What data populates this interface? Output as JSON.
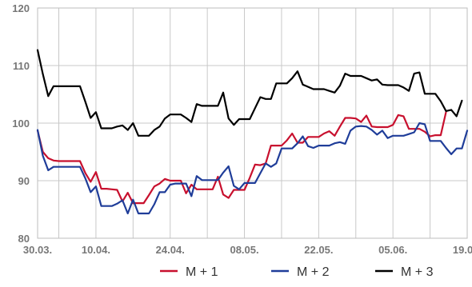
{
  "chart_data": {
    "type": "line",
    "ylim": [
      80,
      120
    ],
    "y_ticks": [
      80,
      90,
      100,
      110,
      120
    ],
    "x_tick_labels": [
      "30.03.",
      "10.04.",
      "24.04.",
      "08.05.",
      "22.05.",
      "05.06.",
      "19.06."
    ],
    "grid": true,
    "legend_position": "bottom",
    "series": [
      {
        "name": "M + 1",
        "color": "#c8102e",
        "points": [
          [
            0,
            98.7
          ],
          [
            1,
            95.0
          ],
          [
            2,
            93.9
          ],
          [
            3,
            93.5
          ],
          [
            4,
            93.4
          ],
          [
            5,
            93.4
          ],
          [
            6,
            93.4
          ],
          [
            7,
            93.4
          ],
          [
            8,
            93.4
          ],
          [
            9,
            91.3
          ],
          [
            10,
            89.8
          ],
          [
            11,
            91.5
          ],
          [
            12,
            88.6
          ],
          [
            13,
            88.6
          ],
          [
            14,
            88.5
          ],
          [
            15,
            88.4
          ],
          [
            16,
            86.4
          ],
          [
            17,
            87.9
          ],
          [
            18,
            86.1
          ],
          [
            19,
            86.1
          ],
          [
            20,
            86.1
          ],
          [
            21,
            87.5
          ],
          [
            22,
            89.0
          ],
          [
            23,
            89.5
          ],
          [
            24,
            90.3
          ],
          [
            25,
            90.0
          ],
          [
            26,
            90.0
          ],
          [
            27,
            90.0
          ],
          [
            28,
            87.8
          ],
          [
            29,
            89.3
          ],
          [
            30,
            88.5
          ],
          [
            31,
            88.5
          ],
          [
            32,
            88.5
          ],
          [
            33,
            88.5
          ],
          [
            34,
            90.7
          ],
          [
            35,
            87.6
          ],
          [
            36,
            87.0
          ],
          [
            37,
            88.4
          ],
          [
            38,
            88.4
          ],
          [
            39,
            88.4
          ],
          [
            40,
            90.5
          ],
          [
            41,
            92.8
          ],
          [
            42,
            92.7
          ],
          [
            43,
            93.0
          ],
          [
            44,
            96.1
          ],
          [
            45,
            96.1
          ],
          [
            46,
            96.1
          ],
          [
            47,
            97.0
          ],
          [
            48,
            98.2
          ],
          [
            49,
            96.6
          ],
          [
            50,
            96.6
          ],
          [
            51,
            97.6
          ],
          [
            52,
            97.6
          ],
          [
            53,
            97.6
          ],
          [
            54,
            98.2
          ],
          [
            55,
            98.6
          ],
          [
            56,
            97.8
          ],
          [
            57,
            99.4
          ],
          [
            58,
            100.9
          ],
          [
            59,
            100.9
          ],
          [
            60,
            100.8
          ],
          [
            61,
            100.2
          ],
          [
            62,
            101.3
          ],
          [
            63,
            99.4
          ],
          [
            64,
            99.3
          ],
          [
            65,
            99.3
          ],
          [
            66,
            99.3
          ],
          [
            67,
            99.7
          ],
          [
            68,
            101.4
          ],
          [
            69,
            101.2
          ],
          [
            70,
            99.0
          ],
          [
            71,
            99.0
          ],
          [
            72,
            99.0
          ],
          [
            73,
            98.5
          ],
          [
            74,
            97.7
          ],
          [
            75,
            97.9
          ],
          [
            76,
            97.9
          ],
          [
            77,
            101.9
          ]
        ]
      },
      {
        "name": "M + 2",
        "color": "#1f3d99",
        "points": [
          [
            0,
            98.8
          ],
          [
            1,
            94.3
          ],
          [
            2,
            91.8
          ],
          [
            3,
            92.4
          ],
          [
            4,
            92.4
          ],
          [
            5,
            92.4
          ],
          [
            6,
            92.4
          ],
          [
            7,
            92.4
          ],
          [
            8,
            92.4
          ],
          [
            9,
            90.4
          ],
          [
            10,
            88.0
          ],
          [
            11,
            89.0
          ],
          [
            12,
            85.6
          ],
          [
            13,
            85.6
          ],
          [
            14,
            85.6
          ],
          [
            15,
            86.0
          ],
          [
            16,
            86.6
          ],
          [
            17,
            84.3
          ],
          [
            18,
            86.7
          ],
          [
            19,
            84.3
          ],
          [
            20,
            84.3
          ],
          [
            21,
            84.3
          ],
          [
            22,
            85.9
          ],
          [
            23,
            88.0
          ],
          [
            24,
            88.0
          ],
          [
            25,
            89.3
          ],
          [
            26,
            89.5
          ],
          [
            27,
            89.5
          ],
          [
            28,
            89.5
          ],
          [
            29,
            87.3
          ],
          [
            30,
            90.8
          ],
          [
            31,
            90.1
          ],
          [
            32,
            90.1
          ],
          [
            33,
            90.1
          ],
          [
            34,
            90.1
          ],
          [
            35,
            91.4
          ],
          [
            36,
            92.5
          ],
          [
            37,
            89.1
          ],
          [
            38,
            88.5
          ],
          [
            39,
            89.6
          ],
          [
            40,
            89.6
          ],
          [
            41,
            89.6
          ],
          [
            42,
            91.3
          ],
          [
            43,
            93.0
          ],
          [
            44,
            92.4
          ],
          [
            45,
            93.0
          ],
          [
            46,
            95.6
          ],
          [
            47,
            95.6
          ],
          [
            48,
            95.6
          ],
          [
            49,
            96.5
          ],
          [
            50,
            97.7
          ],
          [
            51,
            96.0
          ],
          [
            52,
            95.7
          ],
          [
            53,
            96.1
          ],
          [
            54,
            96.1
          ],
          [
            55,
            96.1
          ],
          [
            56,
            96.5
          ],
          [
            57,
            96.7
          ],
          [
            58,
            96.4
          ],
          [
            59,
            98.7
          ],
          [
            60,
            99.4
          ],
          [
            61,
            99.5
          ],
          [
            62,
            99.4
          ],
          [
            63,
            98.8
          ],
          [
            64,
            98.0
          ],
          [
            65,
            98.7
          ],
          [
            66,
            97.4
          ],
          [
            67,
            97.8
          ],
          [
            68,
            97.8
          ],
          [
            69,
            97.8
          ],
          [
            70,
            98.1
          ],
          [
            71,
            98.4
          ],
          [
            72,
            100.0
          ],
          [
            73,
            99.8
          ],
          [
            74,
            96.9
          ],
          [
            75,
            96.9
          ],
          [
            76,
            96.9
          ],
          [
            77,
            95.7
          ],
          [
            78,
            94.6
          ],
          [
            79,
            95.6
          ],
          [
            80,
            95.6
          ],
          [
            81,
            98.7
          ]
        ]
      },
      {
        "name": "M + 3",
        "color": "#000000",
        "points": [
          [
            0,
            112.7
          ],
          [
            1,
            108.5
          ],
          [
            2,
            104.7
          ],
          [
            3,
            106.4
          ],
          [
            4,
            106.4
          ],
          [
            5,
            106.4
          ],
          [
            6,
            106.4
          ],
          [
            7,
            106.4
          ],
          [
            8,
            106.4
          ],
          [
            9,
            103.7
          ],
          [
            10,
            100.9
          ],
          [
            11,
            101.9
          ],
          [
            12,
            99.1
          ],
          [
            13,
            99.1
          ],
          [
            14,
            99.1
          ],
          [
            15,
            99.4
          ],
          [
            16,
            99.6
          ],
          [
            17,
            98.8
          ],
          [
            18,
            100.0
          ],
          [
            19,
            97.8
          ],
          [
            20,
            97.8
          ],
          [
            21,
            97.8
          ],
          [
            22,
            98.8
          ],
          [
            23,
            99.4
          ],
          [
            24,
            100.8
          ],
          [
            25,
            101.5
          ],
          [
            26,
            101.5
          ],
          [
            27,
            101.5
          ],
          [
            28,
            100.9
          ],
          [
            29,
            100.2
          ],
          [
            30,
            103.3
          ],
          [
            31,
            103.0
          ],
          [
            32,
            103.0
          ],
          [
            33,
            103.0
          ],
          [
            34,
            103.0
          ],
          [
            35,
            105.3
          ],
          [
            36,
            100.8
          ],
          [
            37,
            99.7
          ],
          [
            38,
            100.7
          ],
          [
            39,
            100.7
          ],
          [
            40,
            100.7
          ],
          [
            41,
            102.6
          ],
          [
            42,
            104.5
          ],
          [
            43,
            104.2
          ],
          [
            44,
            104.2
          ],
          [
            45,
            106.9
          ],
          [
            46,
            106.9
          ],
          [
            47,
            106.9
          ],
          [
            48,
            107.8
          ],
          [
            49,
            109.0
          ],
          [
            50,
            106.7
          ],
          [
            51,
            106.3
          ],
          [
            52,
            105.9
          ],
          [
            53,
            105.9
          ],
          [
            54,
            105.9
          ],
          [
            55,
            105.6
          ],
          [
            56,
            105.3
          ],
          [
            57,
            106.5
          ],
          [
            58,
            108.6
          ],
          [
            59,
            108.2
          ],
          [
            60,
            108.2
          ],
          [
            61,
            108.2
          ],
          [
            62,
            107.8
          ],
          [
            63,
            107.4
          ],
          [
            64,
            107.6
          ],
          [
            65,
            106.7
          ],
          [
            66,
            106.6
          ],
          [
            67,
            106.6
          ],
          [
            68,
            106.6
          ],
          [
            69,
            106.2
          ],
          [
            70,
            105.6
          ],
          [
            71,
            108.6
          ],
          [
            72,
            108.8
          ],
          [
            73,
            105.1
          ],
          [
            74,
            105.1
          ],
          [
            75,
            105.1
          ],
          [
            76,
            103.8
          ],
          [
            77,
            102.1
          ],
          [
            78,
            102.3
          ],
          [
            79,
            101.2
          ],
          [
            80,
            103.9
          ]
        ]
      }
    ]
  }
}
